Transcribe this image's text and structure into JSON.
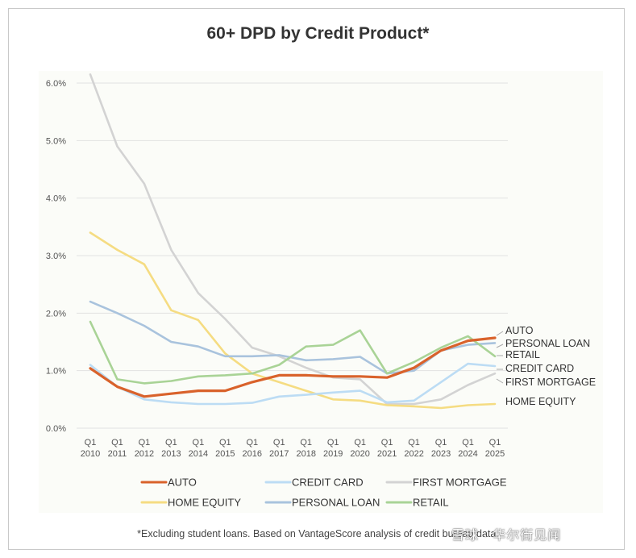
{
  "chart_data": {
    "type": "line",
    "title": "60+ DPD by Credit Product*",
    "x": [
      "Q1 2010",
      "Q1 2011",
      "Q1 2012",
      "Q1 2013",
      "Q1 2014",
      "Q1 2015",
      "Q1 2016",
      "Q1 2017",
      "Q1 2018",
      "Q1 2019",
      "Q1 2020",
      "Q1 2021",
      "Q1 2022",
      "Q1 2023",
      "Q1 2024",
      "Q1 2025"
    ],
    "x_ticks": [
      {
        "q": "Q1",
        "year": "2010"
      },
      {
        "q": "Q1",
        "year": "2011"
      },
      {
        "q": "Q1",
        "year": "2012"
      },
      {
        "q": "Q1",
        "year": "2013"
      },
      {
        "q": "Q1",
        "year": "2014"
      },
      {
        "q": "Q1",
        "year": "2015"
      },
      {
        "q": "Q1",
        "year": "2016"
      },
      {
        "q": "Q1",
        "year": "2017"
      },
      {
        "q": "Q1",
        "year": "2018"
      },
      {
        "q": "Q1",
        "year": "2019"
      },
      {
        "q": "Q1",
        "year": "2020"
      },
      {
        "q": "Q1",
        "year": "2021"
      },
      {
        "q": "Q1",
        "year": "2022"
      },
      {
        "q": "Q1",
        "year": "2023"
      },
      {
        "q": "Q1",
        "year": "2024"
      },
      {
        "q": "Q1",
        "year": "2025"
      }
    ],
    "y_ticks": [
      "0.0%",
      "1.0%",
      "2.0%",
      "3.0%",
      "4.0%",
      "5.0%",
      "6.0%"
    ],
    "ylim": [
      0,
      6.0
    ],
    "y_unit": "%",
    "grid": "horizontal",
    "legend_position": "bottom",
    "series": [
      {
        "name": "FIRST MORTGAGE",
        "color": "#d3d3d3",
        "end_label": "FIRST MORTGAGE",
        "values": [
          6.15,
          4.9,
          4.25,
          3.1,
          2.35,
          1.9,
          1.4,
          1.25,
          1.05,
          0.88,
          0.85,
          0.42,
          0.42,
          0.5,
          0.75,
          0.95
        ]
      },
      {
        "name": "HOME EQUITY",
        "color": "#f5dc82",
        "end_label": "HOME EQUITY",
        "values": [
          3.4,
          3.1,
          2.85,
          2.05,
          1.88,
          1.3,
          0.95,
          0.8,
          0.65,
          0.5,
          0.48,
          0.4,
          0.38,
          0.35,
          0.4,
          0.42
        ]
      },
      {
        "name": "PERSONAL LOAN",
        "color": "#a9c3dd",
        "end_label": "PERSONAL LOAN",
        "values": [
          2.2,
          2.0,
          1.78,
          1.5,
          1.42,
          1.25,
          1.25,
          1.27,
          1.18,
          1.2,
          1.24,
          0.95,
          1.0,
          1.35,
          1.45,
          1.48
        ]
      },
      {
        "name": "CREDIT CARD",
        "color": "#bcdcf4",
        "end_label": "CREDIT CARD",
        "values": [
          1.1,
          0.72,
          0.5,
          0.45,
          0.42,
          0.42,
          0.44,
          0.55,
          0.58,
          0.62,
          0.65,
          0.45,
          0.48,
          0.8,
          1.12,
          1.08
        ]
      },
      {
        "name": "RETAIL",
        "color": "#a9d396",
        "end_label": "RETAIL",
        "values": [
          1.85,
          0.85,
          0.78,
          0.82,
          0.9,
          0.92,
          0.95,
          1.1,
          1.42,
          1.45,
          1.7,
          0.95,
          1.15,
          1.4,
          1.6,
          1.25
        ]
      },
      {
        "name": "AUTO",
        "color": "#d9622b",
        "end_label": "AUTO",
        "values": [
          1.04,
          0.72,
          0.55,
          0.6,
          0.65,
          0.65,
          0.8,
          0.92,
          0.92,
          0.9,
          0.9,
          0.88,
          1.05,
          1.35,
          1.52,
          1.57
        ]
      }
    ],
    "legend": [
      {
        "name": "AUTO",
        "color": "#d9622b"
      },
      {
        "name": "CREDIT CARD",
        "color": "#bcdcf4"
      },
      {
        "name": "FIRST MORTGAGE",
        "color": "#d3d3d3"
      },
      {
        "name": "HOME EQUITY",
        "color": "#f5dc82"
      },
      {
        "name": "PERSONAL LOAN",
        "color": "#a9c3dd"
      },
      {
        "name": "RETAIL",
        "color": "#a9d396"
      }
    ],
    "end_labels_order": [
      "AUTO",
      "PERSONAL LOAN",
      "RETAIL",
      "CREDIT CARD",
      "FIRST MORTGAGE",
      "HOME EQUITY"
    ],
    "footnote": "*Excluding student loans. Based on VantageScore analysis of credit bureau data.",
    "watermark": "雪球 · 华尔街见闻"
  }
}
